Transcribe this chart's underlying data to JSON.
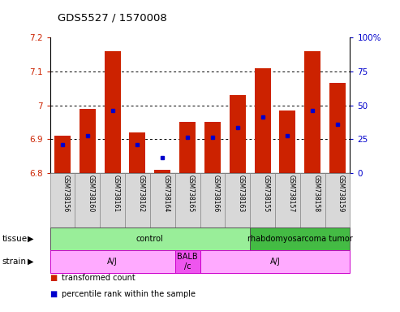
{
  "title": "GDS5527 / 1570008",
  "samples": [
    "GSM738156",
    "GSM738160",
    "GSM738161",
    "GSM738162",
    "GSM738164",
    "GSM738165",
    "GSM738166",
    "GSM738163",
    "GSM738155",
    "GSM738157",
    "GSM738158",
    "GSM738159"
  ],
  "bar_tops": [
    6.91,
    6.99,
    7.16,
    6.92,
    6.81,
    6.95,
    6.95,
    7.03,
    7.11,
    6.985,
    7.16,
    7.065
  ],
  "blue_dots": [
    6.885,
    6.91,
    6.985,
    6.885,
    6.845,
    6.905,
    6.905,
    6.935,
    6.965,
    6.91,
    6.985,
    6.945
  ],
  "bar_bottom": 6.8,
  "ylim": [
    6.8,
    7.2
  ],
  "yticks": [
    6.8,
    6.9,
    7.0,
    7.1,
    7.2
  ],
  "ytick_labels": [
    "6.8",
    "6.9",
    "7",
    "7.1",
    "7.2"
  ],
  "y2ticks_pct": [
    0,
    25,
    50,
    75,
    100
  ],
  "y2tick_labels": [
    "0",
    "25",
    "50",
    "75",
    "100%"
  ],
  "bar_color": "#cc2200",
  "dot_color": "#0000cc",
  "tissue_groups": [
    {
      "label": "control",
      "start": 0,
      "end": 8,
      "color": "#99ee99"
    },
    {
      "label": "rhabdomyosarcoma tumor",
      "start": 8,
      "end": 12,
      "color": "#44bb44"
    }
  ],
  "strain_groups": [
    {
      "label": "A/J",
      "start": 0,
      "end": 5,
      "color": "#ffaaff"
    },
    {
      "label": "BALB\n/c",
      "start": 5,
      "end": 6,
      "color": "#ee55ee"
    },
    {
      "label": "A/J",
      "start": 6,
      "end": 12,
      "color": "#ffaaff"
    }
  ],
  "legend_items": [
    {
      "color": "#cc2200",
      "label": "transformed count"
    },
    {
      "color": "#0000cc",
      "label": "percentile rank within the sample"
    }
  ]
}
